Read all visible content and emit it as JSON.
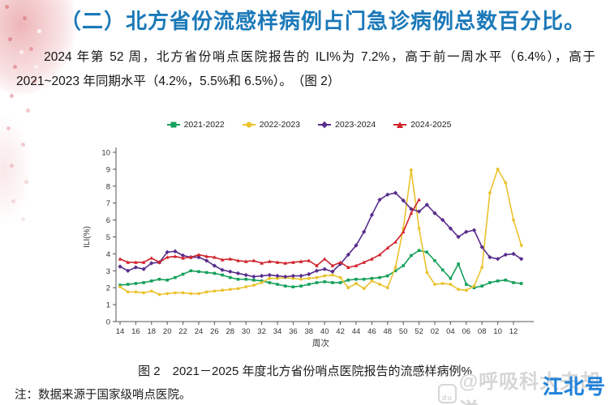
{
  "page": {
    "title": "（二）北方省份流感样病例占门急诊病例总数百分比。",
    "paragraph": "2024 年第 52 周，北方省份哨点医院报告的 ILI%为 7.2%，高于前一周水平（6.4%），高于 2021~2023 年同期水平（4.2%，5.5%和 6.5%）。　（图 2）",
    "caption": "图 2　2021－2025 年度北方省份哨点医院报告的流感样病例%",
    "note": "注：数据来源于国家级哨点医院。",
    "watermark_gray": "@呼吸科大夫胡洋",
    "watermark_gray_logo": "du",
    "watermark_blue": "江北号"
  },
  "colors": {
    "title_blue": "#1b79b8",
    "watermark_blue": "#1f81d9",
    "watermark_gray": "#d6d6d6",
    "axis": "#555555"
  },
  "chart_data": {
    "type": "line",
    "xlabel": "周次",
    "ylabel": "ILI(%)",
    "ylim": [
      0,
      10
    ],
    "y_ticks": [
      0,
      1,
      2,
      3,
      4,
      5,
      6,
      7,
      8,
      9,
      10
    ],
    "grid": false,
    "legend_position": "top",
    "x": [
      "14",
      "15",
      "16",
      "17",
      "18",
      "19",
      "20",
      "21",
      "22",
      "23",
      "24",
      "25",
      "26",
      "27",
      "28",
      "29",
      "30",
      "31",
      "32",
      "33",
      "34",
      "35",
      "36",
      "37",
      "38",
      "39",
      "40",
      "41",
      "42",
      "43",
      "44",
      "45",
      "46",
      "47",
      "48",
      "49",
      "50",
      "51",
      "52",
      "01",
      "02",
      "03",
      "04",
      "05",
      "06",
      "07",
      "08",
      "09",
      "10",
      "11",
      "12",
      "13"
    ],
    "x_tick_labels": [
      "14",
      "16",
      "18",
      "20",
      "22",
      "24",
      "26",
      "28",
      "30",
      "32",
      "34",
      "36",
      "38",
      "40",
      "42",
      "44",
      "46",
      "48",
      "50",
      "52",
      "02",
      "04",
      "06",
      "08",
      "10",
      "12"
    ],
    "series": [
      {
        "name": "2021-2022",
        "color": "#16a05c",
        "marker": "square",
        "values": [
          2.15,
          2.2,
          2.25,
          2.3,
          2.4,
          2.5,
          2.45,
          2.6,
          2.8,
          3.0,
          2.95,
          2.9,
          2.85,
          2.75,
          2.6,
          2.5,
          2.5,
          2.45,
          2.4,
          2.3,
          2.2,
          2.1,
          2.05,
          2.1,
          2.2,
          2.3,
          2.35,
          2.3,
          2.3,
          2.45,
          2.5,
          2.5,
          2.55,
          2.6,
          2.7,
          3.0,
          3.3,
          3.9,
          4.2,
          4.1,
          3.6,
          3.05,
          2.55,
          3.4,
          2.2,
          2.0,
          2.1,
          2.3,
          2.4,
          2.45,
          2.3,
          2.25
        ]
      },
      {
        "name": "2022-2023",
        "color": "#eac22d",
        "marker": "circle",
        "values": [
          2.05,
          1.75,
          1.75,
          1.7,
          1.8,
          1.6,
          1.65,
          1.7,
          1.7,
          1.65,
          1.65,
          1.75,
          1.8,
          1.85,
          1.9,
          1.95,
          2.05,
          2.15,
          2.3,
          2.55,
          2.55,
          2.6,
          2.55,
          2.5,
          2.55,
          2.6,
          2.7,
          2.75,
          2.6,
          2.0,
          2.25,
          1.95,
          2.4,
          2.2,
          2.0,
          3.2,
          5.5,
          8.95,
          5.5,
          2.9,
          2.2,
          2.25,
          2.2,
          1.9,
          1.85,
          2.1,
          3.2,
          7.6,
          9.0,
          8.2,
          6.0,
          4.5
        ]
      },
      {
        "name": "2023-2024",
        "color": "#582d8c",
        "marker": "diamond",
        "values": [
          3.25,
          3.0,
          3.2,
          3.1,
          3.45,
          3.5,
          4.1,
          4.15,
          3.9,
          3.8,
          3.8,
          3.6,
          3.3,
          3.05,
          2.95,
          2.85,
          2.75,
          2.65,
          2.7,
          2.75,
          2.7,
          2.65,
          2.7,
          2.7,
          2.8,
          3.0,
          3.1,
          2.95,
          3.4,
          3.95,
          4.5,
          5.3,
          6.3,
          7.2,
          7.5,
          7.6,
          7.15,
          6.65,
          6.5,
          6.9,
          6.4,
          6.0,
          5.5,
          5.0,
          5.3,
          5.4,
          4.4,
          3.8,
          3.7,
          3.95,
          4.0,
          3.7
        ]
      },
      {
        "name": "2024-2025",
        "color": "#d0222c",
        "marker": "triangle",
        "values": [
          3.7,
          3.5,
          3.5,
          3.5,
          3.75,
          3.5,
          3.8,
          3.85,
          3.75,
          3.8,
          3.95,
          3.85,
          3.8,
          3.65,
          3.7,
          3.6,
          3.55,
          3.6,
          3.45,
          3.55,
          3.5,
          3.45,
          3.5,
          3.55,
          3.6,
          3.3,
          3.7,
          3.3,
          3.5,
          3.2,
          3.3,
          3.5,
          3.7,
          3.95,
          4.35,
          4.7,
          5.3,
          6.4,
          7.2,
          null,
          null,
          null,
          null,
          null,
          null,
          null,
          null,
          null,
          null,
          null,
          null,
          null
        ]
      }
    ]
  }
}
